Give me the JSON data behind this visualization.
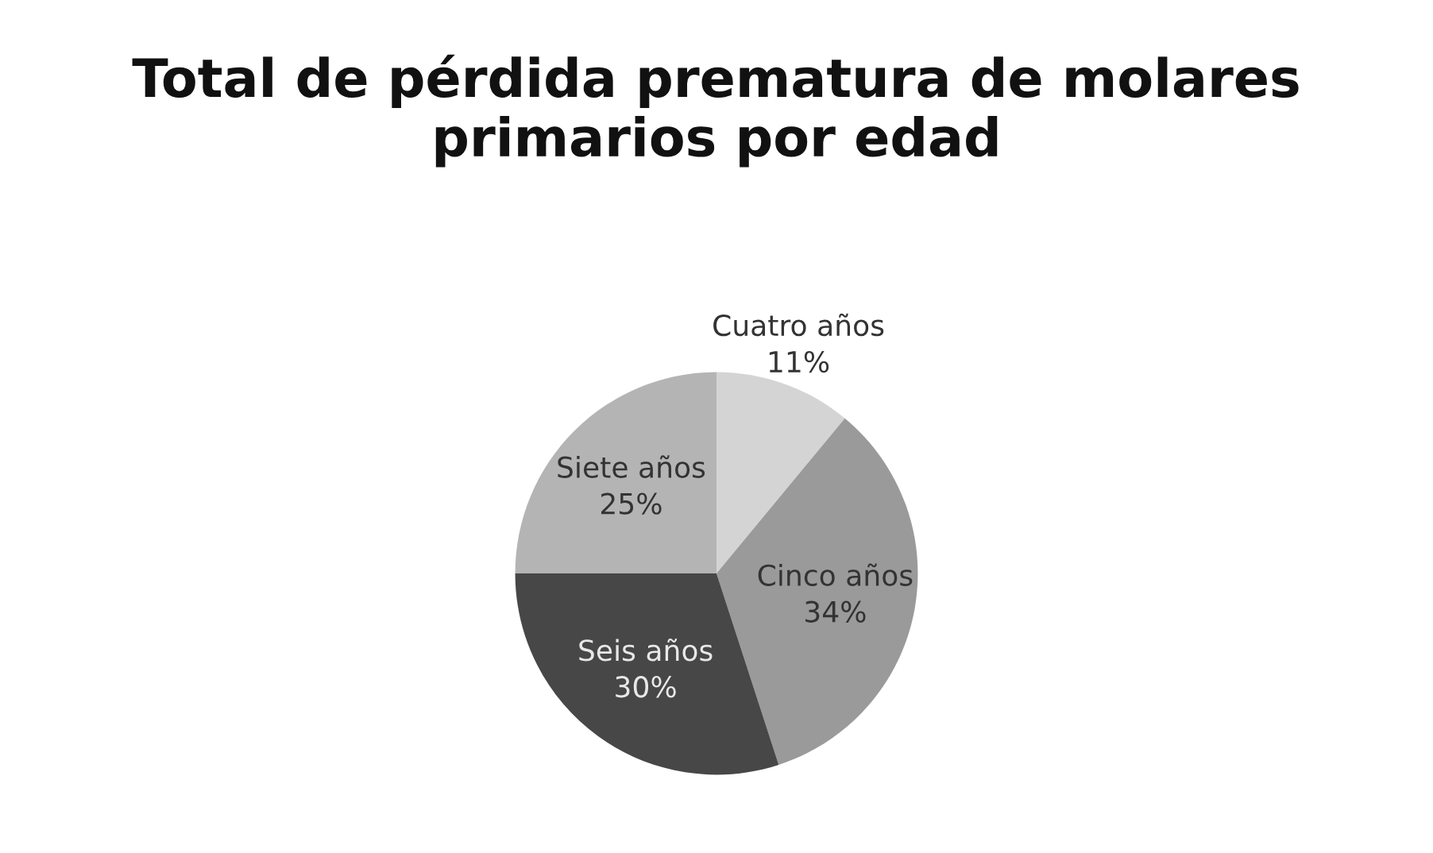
{
  "chart_data": {
    "type": "pie",
    "title": "Total de pérdida prematura de molares primarios por edad",
    "categories": [
      "Cuatro años",
      "Cinco años",
      "Seis años",
      "Siete años"
    ],
    "values": [
      11,
      34,
      30,
      25
    ],
    "colors": [
      "#d4d4d4",
      "#9a9a9a",
      "#474747",
      "#b4b4b4"
    ],
    "value_labels": [
      "11%",
      "34%",
      "30%",
      "25%"
    ],
    "legend": false
  }
}
